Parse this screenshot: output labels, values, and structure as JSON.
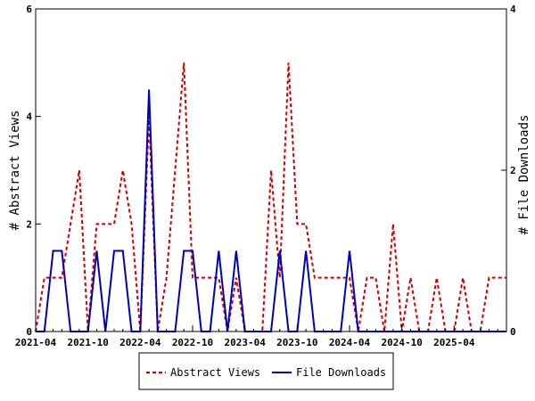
{
  "chart_data": {
    "type": "line",
    "title": "",
    "y_left_label": "# Abstract Views",
    "y_right_label": "# File Downloads",
    "y_left_range": [
      0,
      6
    ],
    "y_right_range": [
      0,
      4
    ],
    "y_left_ticks": [
      "0",
      "2",
      "4",
      "6"
    ],
    "y_right_ticks": [
      "0",
      "2",
      "4"
    ],
    "x_tick_labels": [
      "2021-04",
      "2021-10",
      "2022-04",
      "2022-10",
      "2023-04",
      "2023-10",
      "2024-04",
      "2024-10",
      "2025-04"
    ],
    "months": [
      "2021-04",
      "2021-05",
      "2021-06",
      "2021-07",
      "2021-08",
      "2021-09",
      "2021-10",
      "2021-11",
      "2021-12",
      "2022-01",
      "2022-02",
      "2022-03",
      "2022-04",
      "2022-05",
      "2022-06",
      "2022-07",
      "2022-08",
      "2022-09",
      "2022-10",
      "2022-11",
      "2022-12",
      "2023-01",
      "2023-02",
      "2023-03",
      "2023-04",
      "2023-05",
      "2023-06",
      "2023-07",
      "2023-08",
      "2023-09",
      "2023-10",
      "2023-11",
      "2023-12",
      "2024-01",
      "2024-02",
      "2024-03",
      "2024-04",
      "2024-05",
      "2024-06",
      "2024-07",
      "2024-08",
      "2024-09",
      "2024-10",
      "2024-11",
      "2024-12",
      "2025-01",
      "2025-02",
      "2025-03",
      "2025-04",
      "2025-05",
      "2025-06",
      "2025-07",
      "2025-08",
      "2025-09",
      "2025-10"
    ],
    "grid": false,
    "legend_position": "bottom",
    "series": [
      {
        "name": "Abstract Views",
        "axis": "left",
        "color": "#cc0000",
        "dash": "dashed",
        "values": [
          0,
          1,
          1,
          1,
          2,
          3,
          0,
          2,
          2,
          2,
          3,
          2,
          0,
          4,
          0,
          1,
          3,
          5,
          1,
          1,
          1,
          1,
          0,
          1,
          0,
          0,
          0,
          3,
          1,
          5,
          2,
          2,
          1,
          1,
          1,
          1,
          1,
          0,
          1,
          1,
          0,
          2,
          0,
          1,
          0,
          0,
          1,
          0,
          0,
          1,
          0,
          0,
          1,
          1,
          1
        ]
      },
      {
        "name": "File Downloads",
        "axis": "right",
        "color": "#0000bb",
        "dash": "solid",
        "values": [
          0,
          0,
          1,
          1,
          0,
          0,
          0,
          1,
          0,
          1,
          1,
          0,
          0,
          3,
          0,
          0,
          0,
          1,
          1,
          0,
          0,
          1,
          0,
          1,
          0,
          0,
          0,
          0,
          1,
          0,
          0,
          1,
          0,
          0,
          0,
          0,
          1,
          0,
          0,
          0,
          0,
          0,
          0,
          0,
          0,
          0,
          0,
          0,
          0,
          0,
          0,
          0,
          0,
          0,
          0
        ]
      }
    ]
  }
}
